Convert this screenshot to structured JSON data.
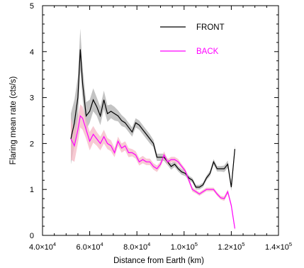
{
  "chart_data": {
    "type": "line",
    "xlabel": "Distance from Earth (km)",
    "ylabel": "Flaring mean rate (cts/s)",
    "xlim": [
      40000,
      140000
    ],
    "ylim": [
      0,
      5
    ],
    "x_ticks": [
      {
        "value": 40000,
        "mantissa": "4.0×10",
        "exp": "4"
      },
      {
        "value": 60000,
        "mantissa": "6.0×10",
        "exp": "4"
      },
      {
        "value": 80000,
        "mantissa": "8.0×10",
        "exp": "4"
      },
      {
        "value": 100000,
        "mantissa": "1.0×10",
        "exp": "5"
      },
      {
        "value": 120000,
        "mantissa": "1.2×10",
        "exp": "5"
      },
      {
        "value": 140000,
        "mantissa": "1.4×10",
        "exp": "5"
      }
    ],
    "y_ticks": [
      {
        "value": 0,
        "label": "0"
      },
      {
        "value": 1,
        "label": "1"
      },
      {
        "value": 2,
        "label": "2"
      },
      {
        "value": 3,
        "label": "3"
      },
      {
        "value": 4,
        "label": "4"
      },
      {
        "value": 5,
        "label": "5"
      }
    ],
    "legend_position": "top-right",
    "series": [
      {
        "name": "FRONT",
        "color": "#000000",
        "band_color": "#b8b8b8",
        "x": [
          52000,
          53500,
          55000,
          56000,
          57000,
          58500,
          60000,
          61500,
          63000,
          64500,
          66000,
          67500,
          69000,
          70500,
          72000,
          73500,
          75000,
          76500,
          78000,
          79500,
          81000,
          82500,
          84000,
          85500,
          87000,
          88500,
          90000,
          91500,
          93000,
          94500,
          96000,
          97500,
          99000,
          100500,
          102000,
          103500,
          105000,
          106500,
          108000,
          109500,
          111000,
          112500,
          114000,
          115500,
          117000,
          118500,
          120000,
          121500
        ],
        "y": [
          2.1,
          2.45,
          3.0,
          4.05,
          3.3,
          2.6,
          2.7,
          2.95,
          2.8,
          2.6,
          2.95,
          2.65,
          2.7,
          2.65,
          2.6,
          2.5,
          2.45,
          2.35,
          2.25,
          2.45,
          2.4,
          2.3,
          2.2,
          2.1,
          2.0,
          1.7,
          1.7,
          1.7,
          1.6,
          1.5,
          1.55,
          1.45,
          1.38,
          1.35,
          1.25,
          1.2,
          1.05,
          1.05,
          1.1,
          1.25,
          1.35,
          1.6,
          1.45,
          1.45,
          1.45,
          1.55,
          1.05,
          1.88
        ],
        "err": [
          0.55,
          0.5,
          0.45,
          0.45,
          0.35,
          0.3,
          0.25,
          0.25,
          0.2,
          0.2,
          0.2,
          0.18,
          0.15,
          0.15,
          0.12,
          0.12,
          0.1,
          0.1,
          0.1,
          0.1,
          0.1,
          0.1,
          0.1,
          0.1,
          0.08,
          0.08,
          0.08,
          0.08,
          0.07,
          0.07,
          0.06,
          0.06,
          0.06,
          0.06,
          0.05,
          0.05,
          0.05,
          0.05,
          0.05,
          0.05,
          0.06,
          0.06,
          0.06,
          0.06,
          0.07,
          0.08,
          0.08,
          0.08
        ]
      },
      {
        "name": "BACK",
        "color": "#ff00ff",
        "band_color": "#f4b8c4",
        "x": [
          52000,
          53500,
          55000,
          56000,
          57000,
          58500,
          60000,
          61500,
          63000,
          64500,
          66000,
          67500,
          69000,
          70500,
          72000,
          73500,
          75000,
          76500,
          78000,
          79500,
          81000,
          82500,
          84000,
          85500,
          87000,
          88500,
          90000,
          91500,
          93000,
          94500,
          96000,
          97500,
          99000,
          100500,
          102000,
          103500,
          105000,
          106500,
          108000,
          109500,
          111000,
          112500,
          114000,
          115500,
          117000,
          118500,
          120000,
          121500
        ],
        "y": [
          2.1,
          1.95,
          2.3,
          2.6,
          2.55,
          2.3,
          2.05,
          2.2,
          2.1,
          2.0,
          2.15,
          2.0,
          1.95,
          1.8,
          2.05,
          1.9,
          1.95,
          1.8,
          1.8,
          1.75,
          1.6,
          1.65,
          1.6,
          1.6,
          1.5,
          1.45,
          1.55,
          1.75,
          1.6,
          1.65,
          1.65,
          1.6,
          1.5,
          1.4,
          1.2,
          1.0,
          0.95,
          0.9,
          0.95,
          1.0,
          1.0,
          1.0,
          0.9,
          0.82,
          0.8,
          0.95,
          0.65,
          0.15
        ],
        "err": [
          0.45,
          0.35,
          0.3,
          0.25,
          0.25,
          0.2,
          0.2,
          0.18,
          0.15,
          0.15,
          0.15,
          0.12,
          0.12,
          0.1,
          0.1,
          0.1,
          0.1,
          0.1,
          0.08,
          0.08,
          0.08,
          0.08,
          0.07,
          0.07,
          0.07,
          0.07,
          0.06,
          0.08,
          0.06,
          0.06,
          0.06,
          0.06,
          0.05,
          0.05,
          0.05,
          0.05,
          0.04,
          0.04,
          0.04,
          0.04,
          0.04,
          0.04,
          0.04,
          0.04,
          0.05,
          0.05,
          0.05,
          0.05
        ]
      }
    ]
  }
}
